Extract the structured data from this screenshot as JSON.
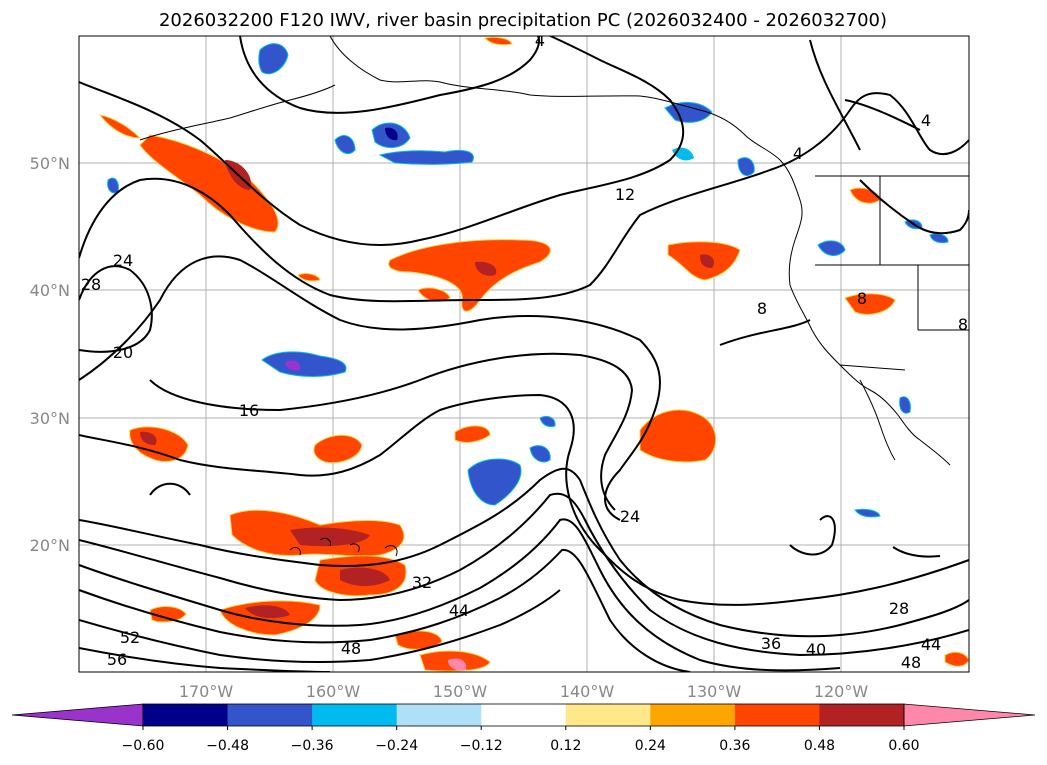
{
  "title": "2026032200 F120 IWV, river basin precipitation PC (2026032400 - 2026032700)",
  "map": {
    "lat_ticks": [
      "50°N",
      "40°N",
      "30°N",
      "20°N"
    ],
    "lon_ticks": [
      "170°W",
      "160°W",
      "150°W",
      "140°W",
      "130°W",
      "120°W"
    ],
    "grid": true,
    "contour_labels": [
      "4",
      "4",
      "4",
      "12",
      "8",
      "8",
      "8",
      "24",
      "28",
      "20",
      "16",
      "24",
      "32",
      "44",
      "52",
      "56",
      "48",
      "36",
      "40",
      "28",
      "44",
      "48"
    ]
  },
  "colorbar": {
    "ticks": [
      "−0.60",
      "−0.48",
      "−0.36",
      "−0.24",
      "−0.12",
      "0.12",
      "0.24",
      "0.36",
      "0.48",
      "0.60"
    ],
    "colors": [
      "#9933cc",
      "#00008b",
      "#3355cc",
      "#00bbf0",
      "#aee0f7",
      "#ffffff",
      "#ffe88a",
      "#ffa500",
      "#ff4500",
      "#b22222",
      "#ff88aa"
    ]
  }
}
